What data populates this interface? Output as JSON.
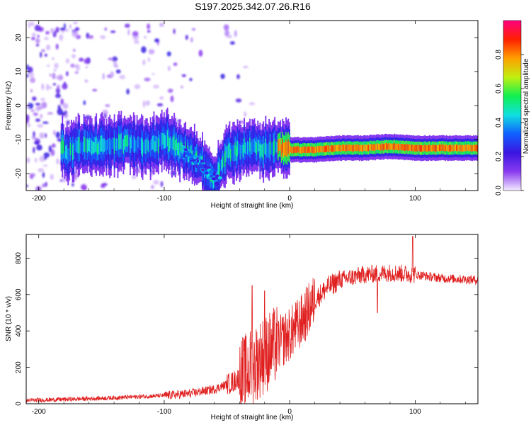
{
  "figure_title": "S197.2025.342.07.26.R16",
  "chart_data": [
    {
      "type": "heatmap",
      "xlabel": "Height of straight line (km)",
      "ylabel": "Frequency (Hz)",
      "xlim": [
        -210,
        150
      ],
      "ylim": [
        -25,
        25
      ],
      "xticks": [
        -200,
        -100,
        0,
        100
      ],
      "yticks": [
        -20,
        -10,
        0,
        10,
        20
      ],
      "colorbar": {
        "label": "Normalized spectral amplitude",
        "range": [
          0,
          1
        ],
        "ticks": [
          "0.0",
          "0.2",
          "0.4",
          "0.6",
          "0.8"
        ],
        "colormap": [
          "#f4ecff",
          "#8a3cf0",
          "#3a14e0",
          "#1060ff",
          "#10e0e0",
          "#10f050",
          "#c0f010",
          "#ffa000",
          "#ff2000",
          "#ff0080"
        ]
      },
      "ridge": {
        "description_points_km_hz": [
          [
            -180,
            -15
          ],
          [
            -170,
            -12
          ],
          [
            -150,
            -12
          ],
          [
            -130,
            -11
          ],
          [
            -110,
            -12
          ],
          [
            -100,
            -10
          ],
          [
            -90,
            -12
          ],
          [
            -80,
            -14
          ],
          [
            -70,
            -17
          ],
          [
            -60,
            -22
          ],
          [
            -50,
            -14
          ],
          [
            -30,
            -12
          ],
          [
            -20,
            -13
          ],
          [
            -10,
            -12
          ],
          [
            0,
            -13
          ],
          [
            20,
            -13
          ],
          [
            40,
            -12.5
          ],
          [
            60,
            -12.5
          ],
          [
            80,
            -12
          ],
          [
            100,
            -12.5
          ],
          [
            120,
            -12.5
          ],
          [
            150,
            -12.5
          ]
        ],
        "peak_amplitude_start_km": -10,
        "peak_amplitude": 0.85
      }
    },
    {
      "type": "line",
      "xlabel": "Height of straight line (km)",
      "ylabel": "SNR (10 * v/v)",
      "xlim": [
        -210,
        150
      ],
      "ylim": [
        0,
        930
      ],
      "xticks": [
        -200,
        -100,
        0,
        100
      ],
      "yticks": [
        0,
        200,
        400,
        600,
        800
      ],
      "line_color": "#e02020",
      "trend": {
        "x": [
          -210,
          -150,
          -100,
          -80,
          -60,
          -45,
          -35,
          -25,
          -15,
          0,
          10,
          20,
          30,
          40,
          60,
          80,
          100,
          120,
          150
        ],
        "y": [
          18,
          30,
          45,
          55,
          80,
          120,
          170,
          240,
          300,
          380,
          460,
          570,
          640,
          680,
          710,
          720,
          710,
          690,
          680
        ]
      },
      "notable_spikes": [
        [
          98,
          920
        ],
        [
          70,
          500
        ],
        [
          -30,
          650
        ],
        [
          -20,
          620
        ]
      ]
    }
  ]
}
